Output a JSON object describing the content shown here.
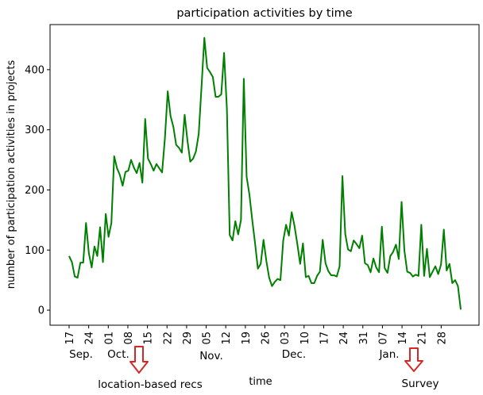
{
  "chart_data": {
    "type": "line",
    "title": "participation activities by time",
    "xlabel": "time",
    "ylabel": "number of participation activities in projects",
    "ylim": [
      -25,
      475
    ],
    "yticks": [
      0,
      100,
      200,
      300,
      400
    ],
    "grid": false,
    "legend": "none",
    "x_tick_labels": [
      "17",
      "24",
      "01",
      "08",
      "15",
      "22",
      "29",
      "05",
      "12",
      "19",
      "26",
      "03",
      "10",
      "17",
      "24",
      "31",
      "07",
      "14",
      "21",
      "28"
    ],
    "month_labels": [
      "Sep.",
      "Oct.",
      "Nov.",
      "Dec.",
      "Jan."
    ],
    "annotations": [
      "location-based recs",
      "Survey"
    ],
    "series": [
      {
        "color": "#008000",
        "values": [
          90,
          80,
          56,
          54,
          79,
          79,
          145,
          95,
          71,
          106,
          90,
          138,
          80,
          160,
          122,
          145,
          256,
          236,
          225,
          207,
          230,
          232,
          250,
          237,
          228,
          245,
          212,
          318,
          252,
          243,
          232,
          243,
          236,
          229,
          286,
          364,
          323,
          305,
          275,
          270,
          262,
          325,
          282,
          247,
          252,
          264,
          293,
          372,
          453,
          403,
          396,
          388,
          355,
          355,
          359,
          428,
          335,
          125,
          116,
          148,
          126,
          150,
          385,
          222,
          192,
          150,
          111,
          69,
          77,
          117,
          82,
          54,
          40,
          47,
          52,
          50,
          116,
          142,
          124,
          163,
          140,
          110,
          77,
          111,
          55,
          57,
          45,
          45,
          57,
          64,
          117,
          78,
          65,
          58,
          58,
          56,
          73,
          223,
          127,
          101,
          98,
          116,
          110,
          103,
          124,
          78,
          75,
          63,
          86,
          71,
          63,
          139,
          70,
          62,
          90,
          97,
          109,
          85,
          180,
          99,
          64,
          62,
          56,
          59,
          57,
          142,
          57,
          102,
          55,
          64,
          73,
          60,
          76,
          134,
          66,
          77,
          45,
          50,
          40,
          1
        ]
      }
    ]
  }
}
